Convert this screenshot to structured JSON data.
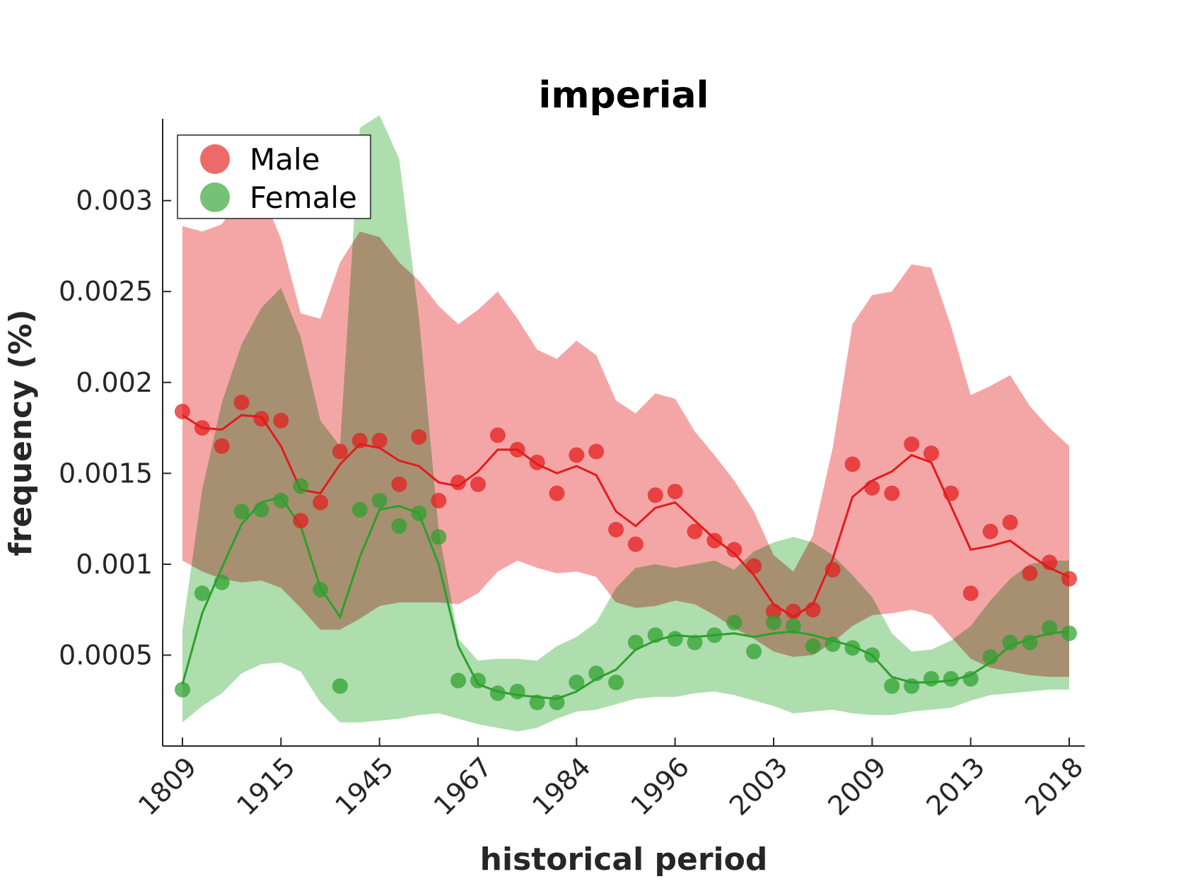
{
  "colors": {
    "male": "#e41a1c",
    "female": "#2ca02c",
    "male_band": "#f08080",
    "female_band": "#7cc87c",
    "axis": "#262626"
  },
  "chart_data": {
    "type": "scatter",
    "title": "imperial",
    "xlabel": "historical period",
    "ylabel": "frequency (%)",
    "ylim": [
      0.0,
      0.00345
    ],
    "yticks": [
      0.0005,
      0.001,
      0.0015,
      0.002,
      0.0025,
      0.003
    ],
    "ytick_labels": [
      "0.0005",
      "0.001",
      "0.0015",
      "0.002",
      "0.0025",
      "0.003"
    ],
    "x": [
      1809,
      1903,
      1907,
      1911,
      1915,
      1918,
      1922,
      1926,
      1940,
      1945,
      1948,
      1950,
      1956,
      1962,
      1967,
      1973,
      1976,
      1978,
      1980,
      1984,
      1988,
      1990,
      1992,
      1994,
      1996,
      1998,
      2000,
      2001,
      2002,
      2003,
      2004,
      2005,
      2006,
      2007,
      2008,
      2009,
      2010,
      2011,
      2012,
      2013,
      2014,
      2015,
      2016,
      2017,
      2018,
      2018.5
    ],
    "xticks": [
      "1809",
      "1915",
      "1945",
      "1967",
      "1984",
      "1996",
      "2003",
      "2009",
      "2013",
      "2018"
    ],
    "legend": {
      "position": "top-left",
      "entries": [
        "Male",
        "Female"
      ]
    },
    "grid": false,
    "series": [
      {
        "name": "Male",
        "points": [
          0.00184,
          0.00175,
          0.00165,
          0.00189,
          0.0018,
          0.00179,
          0.00124,
          0.00134,
          0.00162,
          0.00168,
          0.00168,
          0.00144,
          0.0017,
          0.00135,
          0.00145,
          0.00144,
          0.00171,
          0.00163,
          0.00156,
          0.00139,
          0.0016,
          0.00162,
          0.00119,
          0.00111,
          0.00138,
          0.0014,
          0.00118,
          0.00113,
          0.00108,
          0.00099,
          0.00074,
          0.00074,
          0.00075,
          0.00097,
          0.00155,
          0.00142,
          0.00139,
          0.00166,
          0.00161,
          0.00139,
          0.00084,
          0.00118,
          0.00123,
          0.00095,
          0.00101,
          0.00092
        ],
        "trend": [
          0.00182,
          0.00175,
          0.00174,
          0.00182,
          0.00181,
          0.00165,
          0.00141,
          0.00139,
          0.00155,
          0.00166,
          0.00164,
          0.00157,
          0.00154,
          0.00145,
          0.00143,
          0.00151,
          0.00163,
          0.00163,
          0.00155,
          0.0015,
          0.00154,
          0.00149,
          0.00129,
          0.00121,
          0.00131,
          0.00134,
          0.00124,
          0.00114,
          0.00106,
          0.00094,
          0.00078,
          0.00071,
          0.00078,
          0.00103,
          0.00137,
          0.00146,
          0.00151,
          0.0016,
          0.00156,
          0.00132,
          0.00108,
          0.0011,
          0.00113,
          0.00105,
          0.00098,
          0.00093
        ],
        "band_upper": [
          0.00286,
          0.00283,
          0.00287,
          0.00303,
          0.00305,
          0.00279,
          0.00238,
          0.00235,
          0.00266,
          0.00283,
          0.0028,
          0.00266,
          0.00256,
          0.00242,
          0.00232,
          0.0024,
          0.0025,
          0.00235,
          0.00218,
          0.00213,
          0.00223,
          0.00215,
          0.0019,
          0.00183,
          0.00194,
          0.00191,
          0.00173,
          0.0016,
          0.00146,
          0.00129,
          0.00105,
          0.00096,
          0.00116,
          0.00164,
          0.00232,
          0.00248,
          0.0025,
          0.00265,
          0.00263,
          0.00231,
          0.00193,
          0.00198,
          0.00204,
          0.00187,
          0.00175,
          0.00165
        ],
        "band_lower": [
          0.00102,
          0.00096,
          0.00092,
          0.0009,
          0.00091,
          0.00087,
          0.00076,
          0.00064,
          0.00064,
          0.0007,
          0.00077,
          0.00079,
          0.00079,
          0.00079,
          0.00078,
          0.00084,
          0.00096,
          0.00102,
          0.00098,
          0.00095,
          0.00096,
          0.00093,
          0.00079,
          0.00076,
          0.00077,
          0.0008,
          0.00078,
          0.00072,
          0.00065,
          0.00059,
          0.00052,
          0.00049,
          0.0005,
          0.00057,
          0.00066,
          0.00072,
          0.00073,
          0.00075,
          0.00072,
          0.0006,
          0.00048,
          0.00043,
          0.00041,
          0.00039,
          0.00038,
          0.00038
        ]
      },
      {
        "name": "Female",
        "points": [
          0.00031,
          0.00084,
          0.0009,
          0.00129,
          0.0013,
          0.00135,
          0.00143,
          0.00086,
          0.00033,
          0.0013,
          0.00135,
          0.00121,
          0.00128,
          0.00115,
          0.00036,
          0.00036,
          0.00029,
          0.0003,
          0.00024,
          0.00024,
          0.00035,
          0.0004,
          0.00035,
          0.00057,
          0.00061,
          0.00059,
          0.00057,
          0.00061,
          0.00068,
          0.00052,
          0.00068,
          0.00066,
          0.00055,
          0.00056,
          0.00054,
          0.0005,
          0.00033,
          0.00033,
          0.00037,
          0.00037,
          0.00037,
          0.00049,
          0.00057,
          0.00057,
          0.00065,
          0.00062
        ],
        "trend": [
          0.00034,
          0.00073,
          0.00098,
          0.00122,
          0.00134,
          0.00137,
          0.00121,
          0.00087,
          0.00071,
          0.00104,
          0.0013,
          0.00132,
          0.00128,
          0.001,
          0.00055,
          0.00034,
          0.0003,
          0.00028,
          0.00027,
          0.00026,
          0.0003,
          0.00037,
          0.00042,
          0.00053,
          0.00058,
          0.00061,
          0.0006,
          0.00061,
          0.00062,
          0.0006,
          0.00062,
          0.00063,
          0.00061,
          0.00058,
          0.00055,
          0.0005,
          0.00038,
          0.00035,
          0.00035,
          0.00036,
          0.00039,
          0.00046,
          0.00055,
          0.00059,
          0.00062,
          0.00063
        ],
        "band_upper": [
          0.00064,
          0.00141,
          0.00189,
          0.00221,
          0.00241,
          0.00252,
          0.00225,
          0.00179,
          0.00165,
          0.0034,
          0.00347,
          0.00323,
          0.00236,
          0.00119,
          0.00059,
          0.00047,
          0.00048,
          0.00048,
          0.00047,
          0.00055,
          0.0006,
          0.00068,
          0.00087,
          0.00098,
          0.001,
          0.00098,
          0.001,
          0.00102,
          0.00097,
          0.00107,
          0.00112,
          0.00115,
          0.00112,
          0.00105,
          0.00094,
          0.00082,
          0.00062,
          0.00052,
          0.00053,
          0.00058,
          0.00066,
          0.0008,
          0.00092,
          0.001,
          0.00102,
          0.00102
        ],
        "band_lower": [
          0.00013,
          0.00022,
          0.00029,
          0.0004,
          0.00045,
          0.00046,
          0.00041,
          0.00024,
          0.00013,
          0.00013,
          0.00014,
          0.00015,
          0.00017,
          0.00018,
          0.00015,
          0.00012,
          0.0001,
          8e-05,
          0.0001,
          0.00015,
          0.00019,
          0.0002,
          0.00023,
          0.00026,
          0.00027,
          0.00027,
          0.00029,
          0.0003,
          0.00028,
          0.00025,
          0.00022,
          0.00018,
          0.00019,
          0.0002,
          0.00018,
          0.00017,
          0.00017,
          0.00019,
          0.0002,
          0.00021,
          0.00025,
          0.00028,
          0.00029,
          0.0003,
          0.00031,
          0.00031
        ]
      }
    ]
  }
}
